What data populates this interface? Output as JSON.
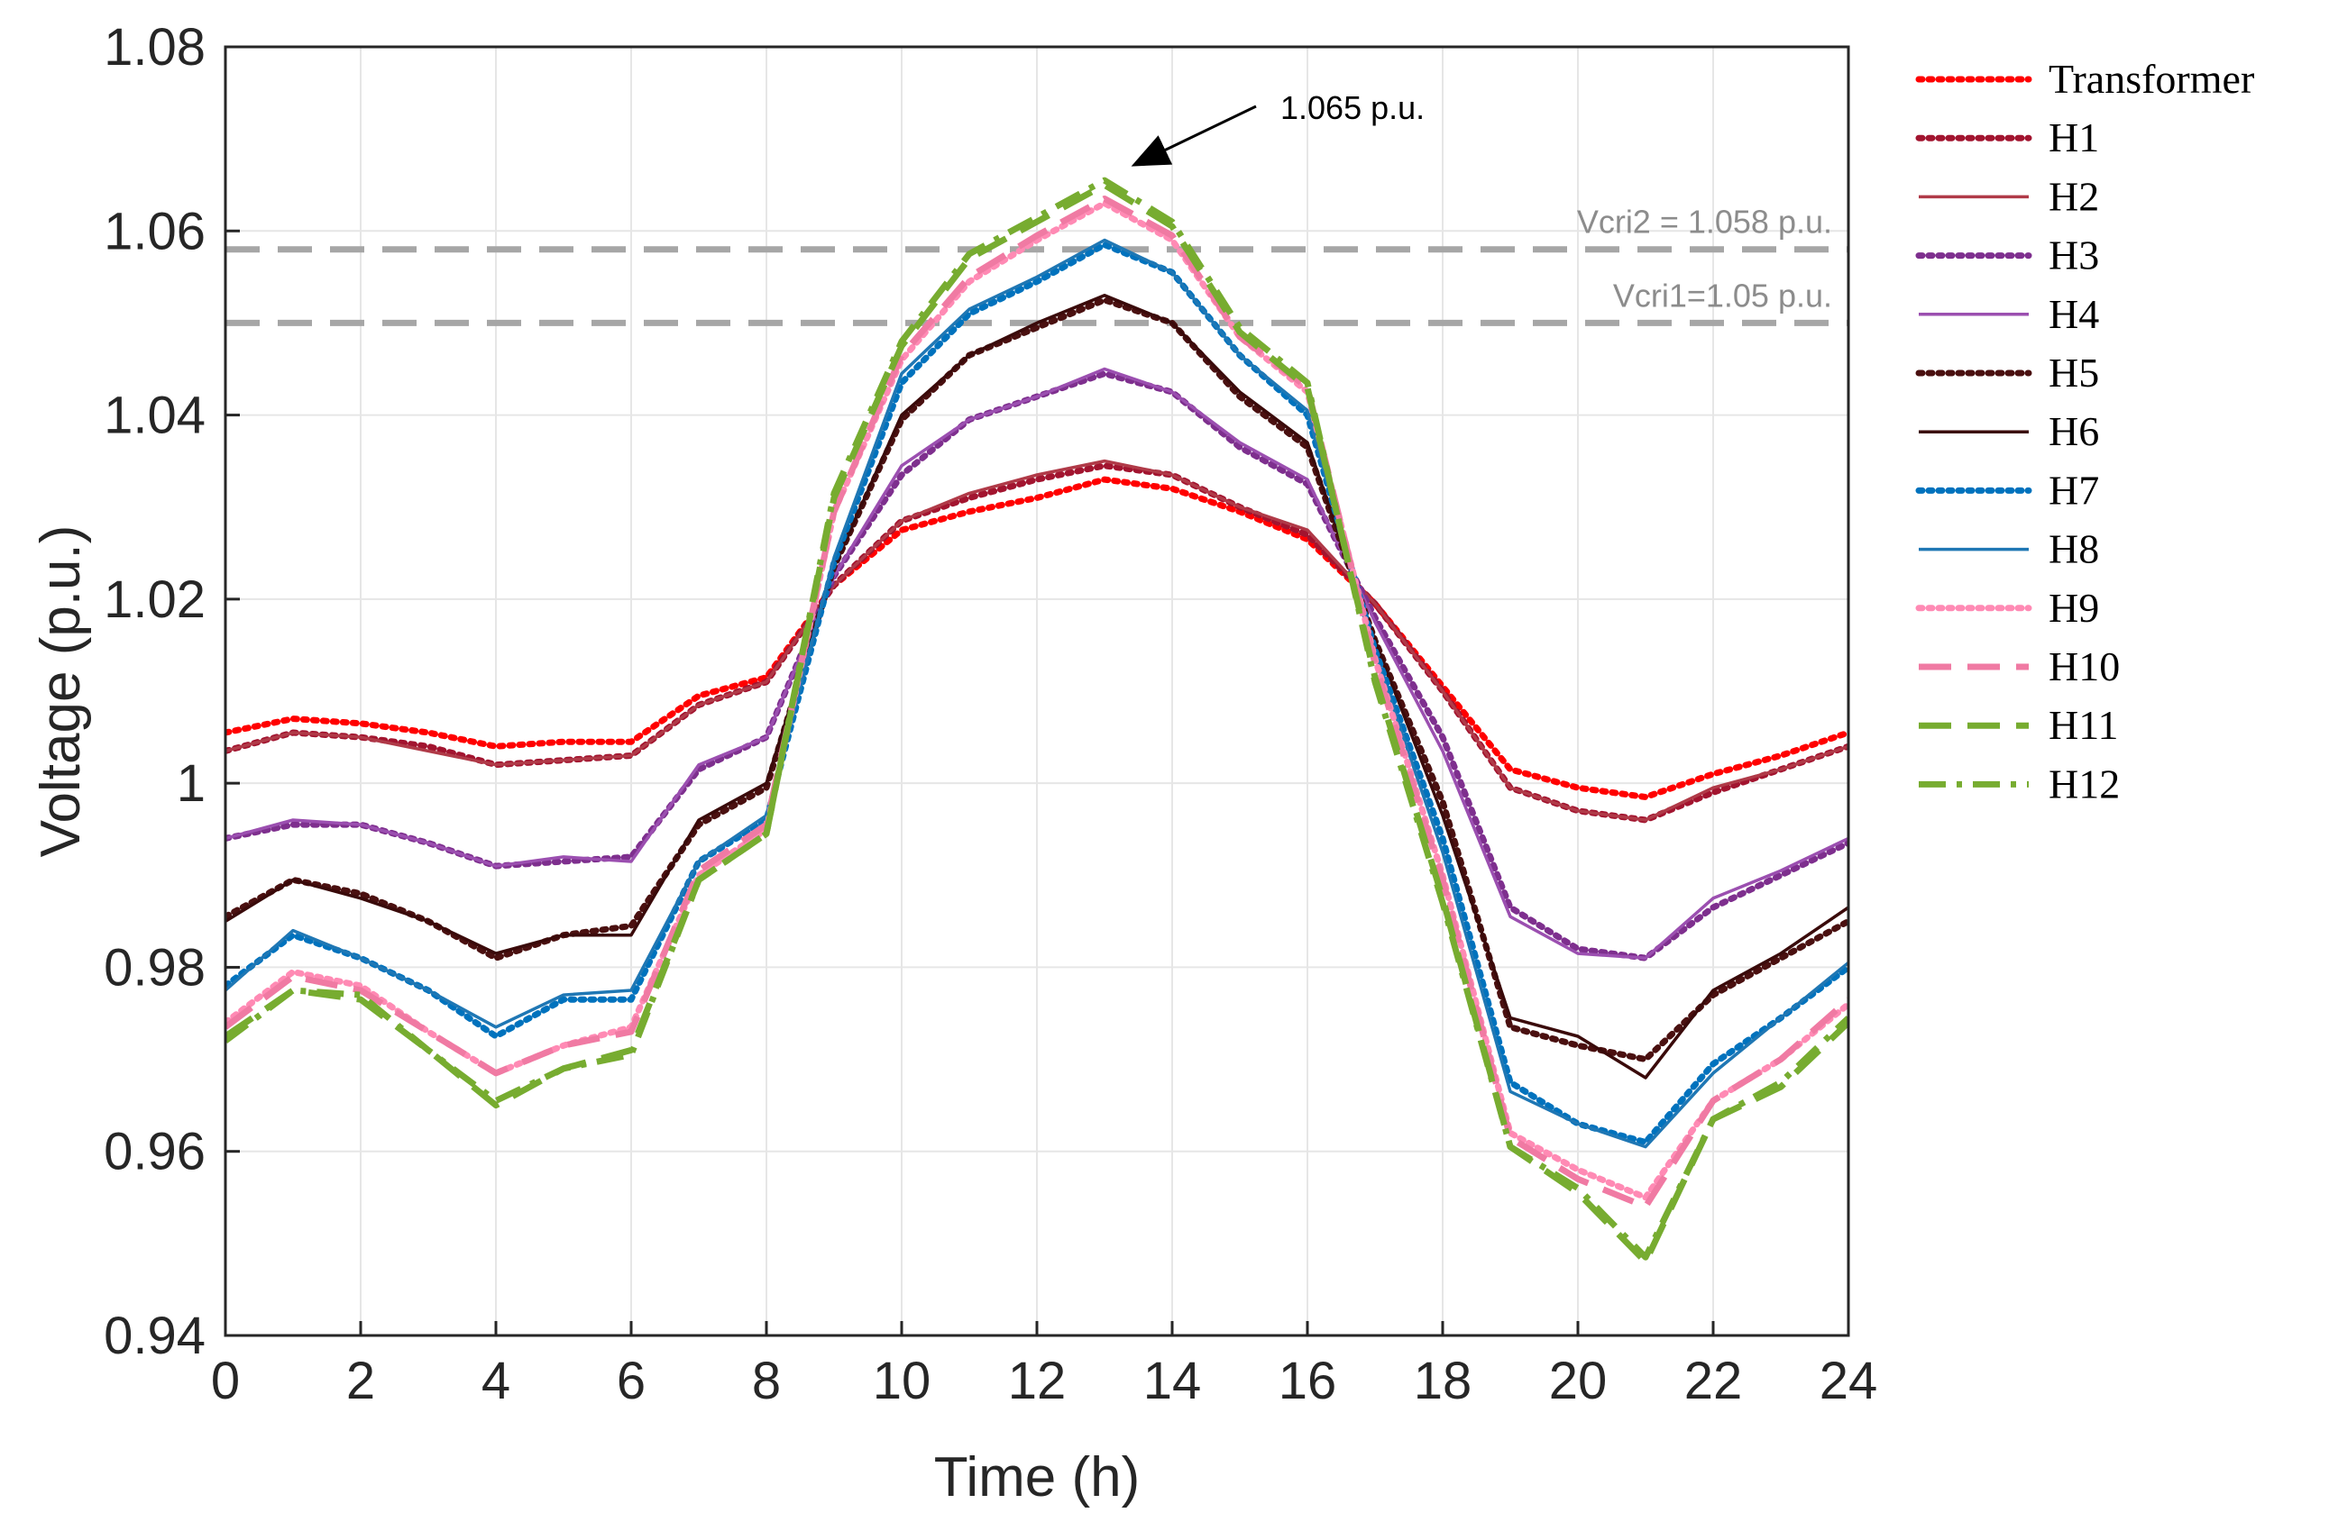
{
  "chart_data": {
    "type": "line",
    "title": "",
    "xlabel": "Time (h)",
    "ylabel": "Voltage (p.u.)",
    "xlim": [
      0,
      24
    ],
    "ylim": [
      0.94,
      1.08
    ],
    "grid": true,
    "x_ticks": [
      "0",
      "2",
      "4",
      "6",
      "8",
      "10",
      "12",
      "14",
      "16",
      "18",
      "20",
      "22",
      "24"
    ],
    "y_ticks": [
      "0.94",
      "0.96",
      "0.98",
      "1",
      "1.02",
      "1.04",
      "1.06",
      "1.08"
    ],
    "legend_position": "outside-right",
    "x": [
      0,
      1,
      2,
      3,
      4,
      5,
      6,
      7,
      8,
      9,
      10,
      11,
      12,
      13,
      14,
      15,
      16,
      17,
      18,
      19,
      20,
      21,
      22,
      23,
      24
    ],
    "series": [
      {
        "name": "Transformer",
        "color": "#ff0000",
        "style": "dotted",
        "values": [
          1.0055,
          1.007,
          1.0065,
          1.0055,
          1.004,
          1.0045,
          1.0045,
          1.0095,
          1.0115,
          1.0215,
          1.0275,
          1.0295,
          1.031,
          1.033,
          1.032,
          1.0295,
          1.0265,
          1.0195,
          1.0105,
          1.0015,
          0.9995,
          0.9985,
          1.001,
          1.003,
          1.0055
        ]
      },
      {
        "name": "H1",
        "color": "#a2142f",
        "style": "dotted",
        "values": [
          1.0035,
          1.0055,
          1.005,
          1.004,
          1.002,
          1.0025,
          1.003,
          1.0085,
          1.011,
          1.0215,
          1.0285,
          1.031,
          1.033,
          1.0345,
          1.0335,
          1.03,
          1.027,
          1.0195,
          1.01,
          0.9995,
          0.997,
          0.996,
          0.999,
          1.0015,
          1.004
        ]
      },
      {
        "name": "H2",
        "color": "#b03a48",
        "style": "solid",
        "values": [
          1.0035,
          1.0055,
          1.005,
          1.0035,
          1.002,
          1.0025,
          1.003,
          1.0085,
          1.011,
          1.0215,
          1.0285,
          1.0315,
          1.0335,
          1.035,
          1.0335,
          1.03,
          1.0275,
          1.0195,
          1.01,
          0.9995,
          0.997,
          0.996,
          0.9995,
          1.0015,
          1.004
        ]
      },
      {
        "name": "H3",
        "color": "#7e2f8e",
        "style": "dotted",
        "values": [
          0.994,
          0.9955,
          0.9955,
          0.9935,
          0.991,
          0.9915,
          0.992,
          1.0015,
          1.005,
          1.0225,
          1.0335,
          1.0395,
          1.042,
          1.0445,
          1.0425,
          1.0365,
          1.0325,
          1.018,
          1.005,
          0.9865,
          0.982,
          0.981,
          0.9865,
          0.99,
          0.9935
        ]
      },
      {
        "name": "H4",
        "color": "#9b4fb0",
        "style": "solid",
        "values": [
          0.994,
          0.996,
          0.9955,
          0.9935,
          0.991,
          0.992,
          0.9915,
          1.002,
          1.005,
          1.0225,
          1.0345,
          1.0395,
          1.042,
          1.045,
          1.0425,
          1.037,
          1.033,
          1.0175,
          1.0035,
          0.9855,
          0.9815,
          0.981,
          0.9875,
          0.9905,
          0.994
        ]
      },
      {
        "name": "H5",
        "color": "#4a1010",
        "style": "dotted",
        "values": [
          0.9855,
          0.9895,
          0.988,
          0.985,
          0.981,
          0.9835,
          0.9845,
          0.9955,
          0.9995,
          1.0235,
          1.0395,
          1.0465,
          1.0495,
          1.0525,
          1.05,
          1.042,
          1.0365,
          1.0155,
          0.998,
          0.9735,
          0.9715,
          0.97,
          0.977,
          0.981,
          0.985
        ]
      },
      {
        "name": "H6",
        "color": "#3a0a0a",
        "style": "solid",
        "values": [
          0.985,
          0.9895,
          0.9875,
          0.985,
          0.9815,
          0.9835,
          0.9835,
          0.996,
          1.0,
          1.0235,
          1.04,
          1.0465,
          1.05,
          1.053,
          1.05,
          1.0425,
          1.037,
          1.0155,
          0.9965,
          0.9745,
          0.9725,
          0.968,
          0.9775,
          0.9815,
          0.9865
        ]
      },
      {
        "name": "H7",
        "color": "#0072bd",
        "style": "dotted",
        "values": [
          0.978,
          0.9835,
          0.981,
          0.9775,
          0.9725,
          0.9765,
          0.9765,
          0.9915,
          0.996,
          1.024,
          1.0435,
          1.051,
          1.0545,
          1.0585,
          1.0555,
          1.0465,
          1.04,
          1.0145,
          0.994,
          0.9675,
          0.963,
          0.961,
          0.9695,
          0.9745,
          0.98
        ]
      },
      {
        "name": "H8",
        "color": "#1f77b4",
        "style": "solid",
        "values": [
          0.9775,
          0.984,
          0.981,
          0.9775,
          0.9735,
          0.977,
          0.9775,
          0.9915,
          0.9965,
          1.0245,
          1.0445,
          1.0515,
          1.055,
          1.059,
          1.0555,
          1.0465,
          1.0405,
          1.014,
          0.9925,
          0.9665,
          0.963,
          0.9605,
          0.9685,
          0.9745,
          0.9805
        ]
      },
      {
        "name": "H9",
        "color": "#ff8ab4",
        "style": "dotted",
        "values": [
          0.974,
          0.9795,
          0.978,
          0.973,
          0.9685,
          0.9715,
          0.9735,
          0.99,
          0.995,
          1.0295,
          1.046,
          1.0545,
          1.059,
          1.063,
          1.059,
          1.0485,
          1.0425,
          1.0135,
          0.99,
          0.962,
          0.958,
          0.955,
          0.9655,
          0.97,
          0.976
        ]
      },
      {
        "name": "H10",
        "color": "#f07aa3",
        "style": "dashed",
        "values": [
          0.9735,
          0.979,
          0.9775,
          0.973,
          0.9685,
          0.9715,
          0.973,
          0.9905,
          0.9955,
          1.0295,
          1.0465,
          1.055,
          1.0595,
          1.0635,
          1.0595,
          1.0485,
          1.043,
          1.013,
          0.9895,
          0.9615,
          0.957,
          0.954,
          0.9655,
          0.97,
          0.9765
        ]
      },
      {
        "name": "H11",
        "color": "#77ac30",
        "style": "dashed",
        "values": [
          0.9725,
          0.9775,
          0.9765,
          0.971,
          0.965,
          0.969,
          0.971,
          0.9895,
          0.9945,
          1.031,
          1.0475,
          1.057,
          1.061,
          1.065,
          1.0605,
          1.049,
          1.043,
          1.0115,
          0.9875,
          0.9605,
          0.9555,
          0.948,
          0.9635,
          0.967,
          0.974
        ]
      },
      {
        "name": "H12",
        "color": "#77ac30",
        "style": "dashdot",
        "values": [
          0.972,
          0.9775,
          0.977,
          0.971,
          0.9655,
          0.969,
          0.9705,
          0.9895,
          0.9945,
          1.0315,
          1.048,
          1.0575,
          1.0615,
          1.0655,
          1.061,
          1.0495,
          1.0435,
          1.011,
          0.987,
          0.9605,
          0.956,
          0.9485,
          0.9635,
          0.9675,
          0.9745
        ]
      }
    ],
    "thresholds": [
      {
        "label": "Vcri2 = 1.058 p.u.",
        "value": 1.058,
        "color": "#a6a6a6"
      },
      {
        "label": "Vcri1=1.05 p.u.",
        "value": 1.05,
        "color": "#a6a6a6"
      }
    ],
    "annotation": {
      "text": "1.065 p.u.",
      "x": 13,
      "y": 1.065
    }
  }
}
